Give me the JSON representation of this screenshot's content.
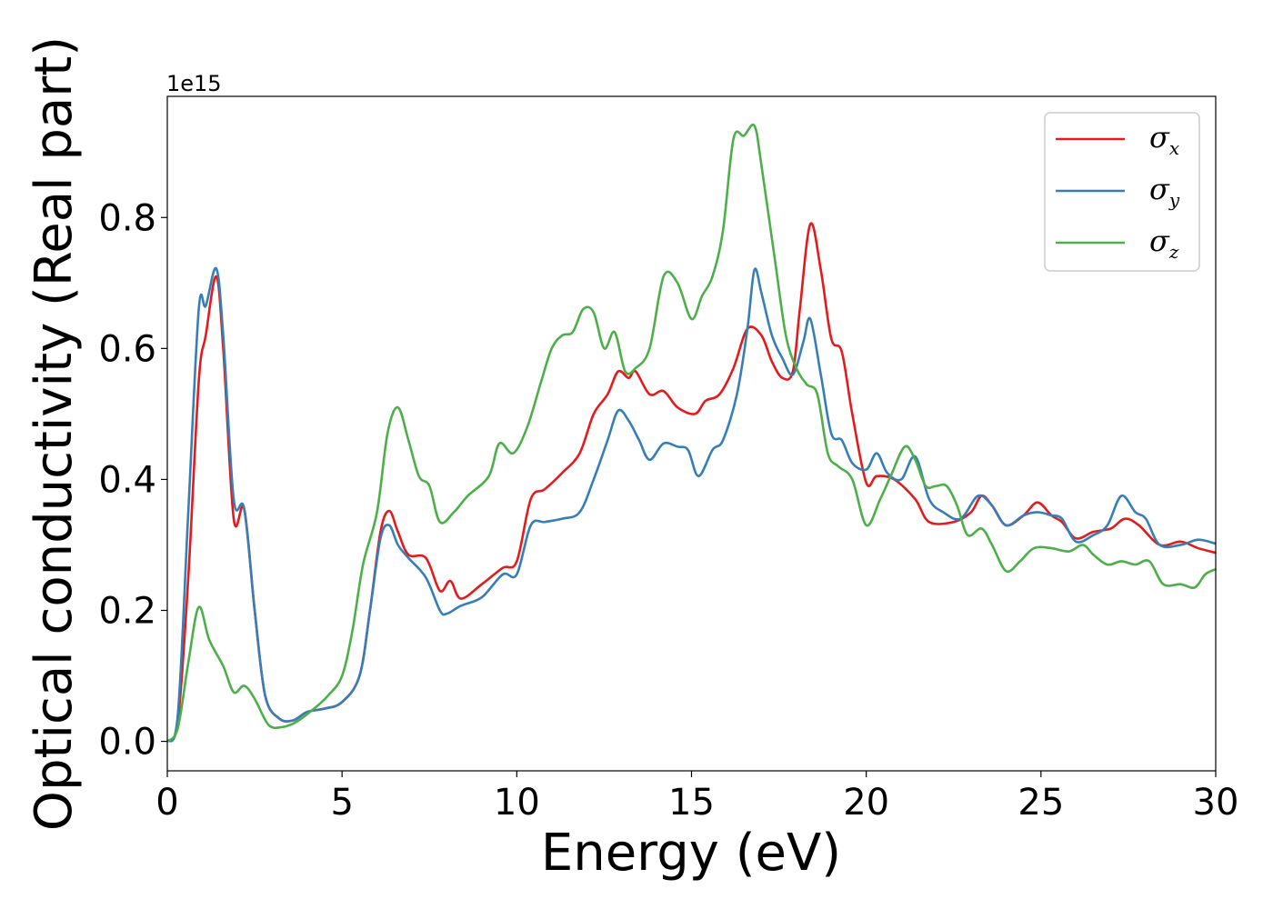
{
  "chart_data": {
    "type": "line",
    "xlabel": "Energy (eV)",
    "ylabel": "Optical conductivity (Real part)",
    "y_offset_text": "1e15",
    "xlim": [
      0,
      30
    ],
    "ylim": [
      -0.045,
      0.985
    ],
    "xticks": [
      0,
      5,
      10,
      15,
      20,
      25,
      30
    ],
    "yticks": [
      0.0,
      0.2,
      0.4,
      0.6,
      0.8
    ],
    "xtick_labels": [
      "0",
      "5",
      "10",
      "15",
      "20",
      "25",
      "30"
    ],
    "ytick_labels": [
      "0.0",
      "0.2",
      "0.4",
      "0.6",
      "0.8"
    ],
    "grid": false,
    "legend_position": "top-right",
    "series": [
      {
        "name": "σx",
        "symbol": "σ",
        "subscript": "x",
        "color": "#e41a1c",
        "points": [
          [
            0,
            0
          ],
          [
            0.3,
            0.03
          ],
          [
            0.6,
            0.25
          ],
          [
            0.9,
            0.55
          ],
          [
            1.1,
            0.62
          ],
          [
            1.4,
            0.71
          ],
          [
            1.6,
            0.6
          ],
          [
            1.9,
            0.34
          ],
          [
            2.2,
            0.355
          ],
          [
            2.5,
            0.2
          ],
          [
            2.8,
            0.07
          ],
          [
            3.2,
            0.035
          ],
          [
            3.6,
            0.032
          ],
          [
            4.0,
            0.045
          ],
          [
            4.5,
            0.05
          ],
          [
            5.0,
            0.06
          ],
          [
            5.5,
            0.1
          ],
          [
            5.8,
            0.2
          ],
          [
            6.1,
            0.32
          ],
          [
            6.35,
            0.352
          ],
          [
            6.6,
            0.32
          ],
          [
            6.9,
            0.285
          ],
          [
            7.4,
            0.28
          ],
          [
            7.8,
            0.23
          ],
          [
            8.1,
            0.245
          ],
          [
            8.4,
            0.218
          ],
          [
            9.0,
            0.24
          ],
          [
            9.6,
            0.265
          ],
          [
            10.0,
            0.275
          ],
          [
            10.4,
            0.37
          ],
          [
            10.8,
            0.385
          ],
          [
            11.3,
            0.41
          ],
          [
            11.8,
            0.44
          ],
          [
            12.2,
            0.5
          ],
          [
            12.6,
            0.53
          ],
          [
            12.9,
            0.565
          ],
          [
            13.2,
            0.555
          ],
          [
            13.4,
            0.565
          ],
          [
            13.8,
            0.53
          ],
          [
            14.2,
            0.535
          ],
          [
            14.6,
            0.51
          ],
          [
            15.1,
            0.5
          ],
          [
            15.4,
            0.52
          ],
          [
            15.8,
            0.53
          ],
          [
            16.2,
            0.57
          ],
          [
            16.6,
            0.63
          ],
          [
            17.0,
            0.62
          ],
          [
            17.3,
            0.58
          ],
          [
            17.6,
            0.555
          ],
          [
            17.9,
            0.565
          ],
          [
            18.1,
            0.66
          ],
          [
            18.4,
            0.79
          ],
          [
            18.7,
            0.72
          ],
          [
            19.0,
            0.615
          ],
          [
            19.3,
            0.595
          ],
          [
            19.6,
            0.5
          ],
          [
            20.0,
            0.395
          ],
          [
            20.3,
            0.405
          ],
          [
            20.8,
            0.4
          ],
          [
            21.4,
            0.37
          ],
          [
            21.8,
            0.335
          ],
          [
            22.5,
            0.335
          ],
          [
            23.0,
            0.35
          ],
          [
            23.3,
            0.375
          ],
          [
            23.6,
            0.36
          ],
          [
            24.0,
            0.33
          ],
          [
            24.5,
            0.345
          ],
          [
            24.9,
            0.365
          ],
          [
            25.3,
            0.345
          ],
          [
            25.6,
            0.335
          ],
          [
            26.0,
            0.31
          ],
          [
            26.5,
            0.32
          ],
          [
            27.0,
            0.325
          ],
          [
            27.4,
            0.34
          ],
          [
            27.8,
            0.33
          ],
          [
            28.4,
            0.3
          ],
          [
            29.0,
            0.305
          ],
          [
            29.5,
            0.295
          ],
          [
            30.0,
            0.288
          ]
        ]
      },
      {
        "name": "σy",
        "symbol": "σ",
        "subscript": "y",
        "color": "#377eb8",
        "points": [
          [
            0,
            0
          ],
          [
            0.3,
            0.04
          ],
          [
            0.6,
            0.35
          ],
          [
            0.9,
            0.66
          ],
          [
            1.1,
            0.665
          ],
          [
            1.4,
            0.722
          ],
          [
            1.6,
            0.62
          ],
          [
            1.9,
            0.37
          ],
          [
            2.2,
            0.355
          ],
          [
            2.5,
            0.2
          ],
          [
            2.8,
            0.07
          ],
          [
            3.2,
            0.035
          ],
          [
            3.6,
            0.032
          ],
          [
            4.0,
            0.045
          ],
          [
            4.5,
            0.05
          ],
          [
            5.0,
            0.06
          ],
          [
            5.5,
            0.1
          ],
          [
            5.8,
            0.2
          ],
          [
            6.1,
            0.31
          ],
          [
            6.35,
            0.33
          ],
          [
            6.6,
            0.3
          ],
          [
            6.9,
            0.28
          ],
          [
            7.4,
            0.25
          ],
          [
            7.8,
            0.2
          ],
          [
            8.0,
            0.195
          ],
          [
            8.4,
            0.207
          ],
          [
            9.0,
            0.22
          ],
          [
            9.6,
            0.255
          ],
          [
            10.0,
            0.255
          ],
          [
            10.4,
            0.33
          ],
          [
            10.8,
            0.335
          ],
          [
            11.3,
            0.34
          ],
          [
            11.8,
            0.35
          ],
          [
            12.2,
            0.4
          ],
          [
            12.6,
            0.46
          ],
          [
            12.9,
            0.505
          ],
          [
            13.2,
            0.49
          ],
          [
            13.5,
            0.46
          ],
          [
            13.8,
            0.43
          ],
          [
            14.2,
            0.455
          ],
          [
            14.6,
            0.45
          ],
          [
            14.9,
            0.445
          ],
          [
            15.2,
            0.405
          ],
          [
            15.6,
            0.445
          ],
          [
            15.9,
            0.46
          ],
          [
            16.3,
            0.53
          ],
          [
            16.6,
            0.63
          ],
          [
            16.8,
            0.72
          ],
          [
            17.0,
            0.685
          ],
          [
            17.3,
            0.62
          ],
          [
            17.6,
            0.585
          ],
          [
            17.9,
            0.56
          ],
          [
            18.2,
            0.61
          ],
          [
            18.4,
            0.645
          ],
          [
            18.7,
            0.56
          ],
          [
            19.0,
            0.47
          ],
          [
            19.3,
            0.46
          ],
          [
            19.6,
            0.425
          ],
          [
            20.0,
            0.415
          ],
          [
            20.3,
            0.44
          ],
          [
            20.6,
            0.41
          ],
          [
            21.0,
            0.4
          ],
          [
            21.4,
            0.435
          ],
          [
            21.8,
            0.37
          ],
          [
            22.2,
            0.35
          ],
          [
            22.7,
            0.34
          ],
          [
            23.2,
            0.375
          ],
          [
            23.6,
            0.36
          ],
          [
            24.0,
            0.33
          ],
          [
            24.5,
            0.345
          ],
          [
            24.9,
            0.35
          ],
          [
            25.3,
            0.345
          ],
          [
            25.6,
            0.34
          ],
          [
            26.0,
            0.305
          ],
          [
            26.5,
            0.315
          ],
          [
            26.9,
            0.33
          ],
          [
            27.3,
            0.375
          ],
          [
            27.7,
            0.35
          ],
          [
            28.0,
            0.34
          ],
          [
            28.4,
            0.3
          ],
          [
            29.0,
            0.3
          ],
          [
            29.5,
            0.308
          ],
          [
            30.0,
            0.302
          ]
        ]
      },
      {
        "name": "σz",
        "symbol": "σ",
        "subscript": "z",
        "color": "#4daf4a",
        "points": [
          [
            0,
            0
          ],
          [
            0.3,
            0.02
          ],
          [
            0.6,
            0.12
          ],
          [
            0.9,
            0.205
          ],
          [
            1.2,
            0.155
          ],
          [
            1.6,
            0.115
          ],
          [
            1.9,
            0.075
          ],
          [
            2.2,
            0.085
          ],
          [
            2.5,
            0.065
          ],
          [
            2.9,
            0.025
          ],
          [
            3.3,
            0.022
          ],
          [
            3.7,
            0.03
          ],
          [
            4.2,
            0.05
          ],
          [
            4.6,
            0.07
          ],
          [
            5.0,
            0.1
          ],
          [
            5.3,
            0.17
          ],
          [
            5.6,
            0.27
          ],
          [
            6.0,
            0.35
          ],
          [
            6.3,
            0.47
          ],
          [
            6.6,
            0.51
          ],
          [
            6.9,
            0.46
          ],
          [
            7.2,
            0.405
          ],
          [
            7.5,
            0.39
          ],
          [
            7.8,
            0.335
          ],
          [
            8.2,
            0.35
          ],
          [
            8.6,
            0.375
          ],
          [
            9.2,
            0.405
          ],
          [
            9.5,
            0.455
          ],
          [
            9.9,
            0.44
          ],
          [
            10.3,
            0.48
          ],
          [
            10.7,
            0.55
          ],
          [
            11.0,
            0.6
          ],
          [
            11.3,
            0.62
          ],
          [
            11.6,
            0.625
          ],
          [
            11.9,
            0.66
          ],
          [
            12.2,
            0.655
          ],
          [
            12.5,
            0.6
          ],
          [
            12.8,
            0.625
          ],
          [
            13.1,
            0.565
          ],
          [
            13.4,
            0.57
          ],
          [
            13.8,
            0.6
          ],
          [
            14.2,
            0.71
          ],
          [
            14.6,
            0.7
          ],
          [
            15.0,
            0.645
          ],
          [
            15.3,
            0.68
          ],
          [
            15.6,
            0.71
          ],
          [
            15.9,
            0.78
          ],
          [
            16.2,
            0.92
          ],
          [
            16.5,
            0.925
          ],
          [
            16.8,
            0.94
          ],
          [
            17.0,
            0.88
          ],
          [
            17.4,
            0.73
          ],
          [
            17.7,
            0.62
          ],
          [
            18.0,
            0.57
          ],
          [
            18.3,
            0.545
          ],
          [
            18.6,
            0.53
          ],
          [
            18.9,
            0.44
          ],
          [
            19.2,
            0.42
          ],
          [
            19.6,
            0.4
          ],
          [
            20.0,
            0.33
          ],
          [
            20.4,
            0.37
          ],
          [
            20.7,
            0.405
          ],
          [
            21.1,
            0.45
          ],
          [
            21.4,
            0.43
          ],
          [
            21.7,
            0.39
          ],
          [
            22.0,
            0.39
          ],
          [
            22.3,
            0.39
          ],
          [
            22.6,
            0.36
          ],
          [
            22.9,
            0.315
          ],
          [
            23.3,
            0.325
          ],
          [
            23.6,
            0.3
          ],
          [
            24.0,
            0.26
          ],
          [
            24.4,
            0.275
          ],
          [
            24.8,
            0.295
          ],
          [
            25.3,
            0.295
          ],
          [
            25.8,
            0.29
          ],
          [
            26.2,
            0.3
          ],
          [
            26.5,
            0.285
          ],
          [
            26.9,
            0.27
          ],
          [
            27.3,
            0.275
          ],
          [
            27.7,
            0.27
          ],
          [
            28.1,
            0.275
          ],
          [
            28.5,
            0.24
          ],
          [
            29.0,
            0.24
          ],
          [
            29.4,
            0.235
          ],
          [
            29.7,
            0.255
          ],
          [
            30.0,
            0.263
          ]
        ]
      }
    ]
  }
}
